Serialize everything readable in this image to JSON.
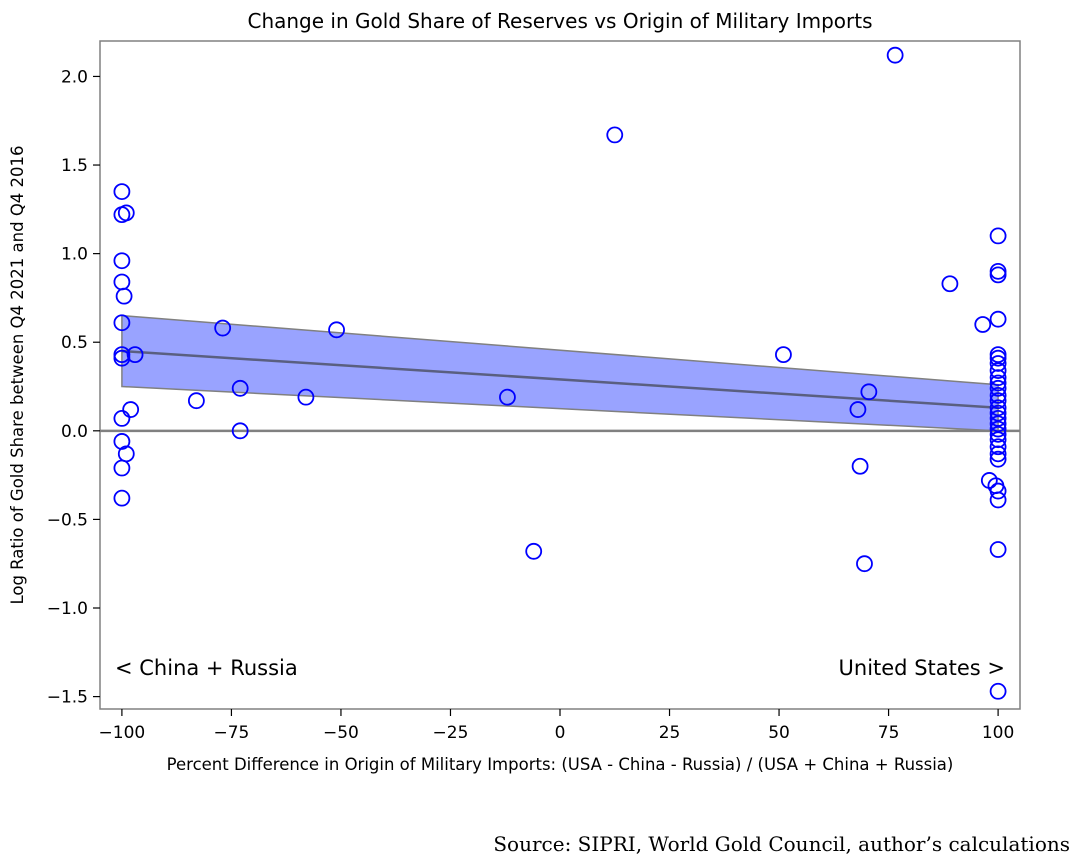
{
  "chart_data": {
    "type": "scatter",
    "title": "Change in Gold Share of Reserves vs Origin of Military Imports",
    "xlabel": "Percent Difference in Origin of Military Imports: (USA - China - Russia) / (USA + China + Russia)",
    "ylabel": "Log Ratio of Gold Share between Q4 2021 and Q4 2016",
    "xlim": [
      -105,
      105
    ],
    "ylim": [
      -1.57,
      2.2
    ],
    "x_ticks": [
      -100,
      -75,
      -50,
      -25,
      0,
      25,
      50,
      75,
      100
    ],
    "x_tick_labels": [
      "−100",
      "−75",
      "−50",
      "−25",
      "0",
      "25",
      "50",
      "75",
      "100"
    ],
    "y_ticks": [
      -1.5,
      -1.0,
      -0.5,
      0.0,
      0.5,
      1.0,
      1.5,
      2.0
    ],
    "y_tick_labels": [
      "−1.5",
      "−1.0",
      "−0.5",
      "0.0",
      "0.5",
      "1.0",
      "1.5",
      "2.0"
    ],
    "grid": false,
    "reference_line_y": 0,
    "annotations": [
      "< China + Russia",
      "United States >"
    ],
    "source": "Source: SIPRI, World Gold Council, author’s calculations",
    "colors": {
      "marker": "#0000ff",
      "band_fill": "#99a3ff",
      "band_edge": "#808080",
      "fit_line": "#5a5f80",
      "zero_line": "#808080",
      "axes": "#808080"
    },
    "regression": {
      "x": [
        -100,
        100
      ],
      "y": [
        0.45,
        0.13
      ],
      "ci_lower": [
        0.25,
        0.0
      ],
      "ci_upper": [
        0.65,
        0.26
      ]
    },
    "points": [
      {
        "x": -100,
        "y": 1.35
      },
      {
        "x": -100,
        "y": 1.22
      },
      {
        "x": -99,
        "y": 1.23
      },
      {
        "x": -100,
        "y": 0.96
      },
      {
        "x": -100,
        "y": 0.84
      },
      {
        "x": -99.5,
        "y": 0.76
      },
      {
        "x": -100,
        "y": 0.61
      },
      {
        "x": -100,
        "y": 0.43
      },
      {
        "x": -100,
        "y": 0.41
      },
      {
        "x": -97,
        "y": 0.43
      },
      {
        "x": -98,
        "y": 0.12
      },
      {
        "x": -100,
        "y": 0.07
      },
      {
        "x": -100,
        "y": -0.06
      },
      {
        "x": -99,
        "y": -0.13
      },
      {
        "x": -100,
        "y": -0.21
      },
      {
        "x": -100,
        "y": -0.38
      },
      {
        "x": -77,
        "y": 0.58
      },
      {
        "x": -83,
        "y": 0.17
      },
      {
        "x": -73,
        "y": 0.24
      },
      {
        "x": -73,
        "y": 0.0
      },
      {
        "x": -58,
        "y": 0.19
      },
      {
        "x": -51,
        "y": 0.57
      },
      {
        "x": -12,
        "y": 0.19
      },
      {
        "x": -6,
        "y": -0.68
      },
      {
        "x": 12.5,
        "y": 1.67
      },
      {
        "x": 51,
        "y": 0.43
      },
      {
        "x": 76.5,
        "y": 2.12
      },
      {
        "x": 68,
        "y": 0.12
      },
      {
        "x": 70.5,
        "y": 0.22
      },
      {
        "x": 68.5,
        "y": -0.2
      },
      {
        "x": 69.5,
        "y": -0.75
      },
      {
        "x": 89,
        "y": 0.83
      },
      {
        "x": 96.5,
        "y": 0.6
      },
      {
        "x": 100,
        "y": 1.1
      },
      {
        "x": 100,
        "y": 0.9
      },
      {
        "x": 100,
        "y": 0.88
      },
      {
        "x": 100,
        "y": 0.63
      },
      {
        "x": 100,
        "y": 0.43
      },
      {
        "x": 100,
        "y": 0.41
      },
      {
        "x": 100,
        "y": 0.38
      },
      {
        "x": 100,
        "y": 0.34
      },
      {
        "x": 100,
        "y": 0.3
      },
      {
        "x": 100,
        "y": 0.27
      },
      {
        "x": 100,
        "y": 0.24
      },
      {
        "x": 100,
        "y": 0.2
      },
      {
        "x": 100,
        "y": 0.17
      },
      {
        "x": 100,
        "y": 0.13
      },
      {
        "x": 100,
        "y": 0.1
      },
      {
        "x": 100,
        "y": 0.07
      },
      {
        "x": 100,
        "y": 0.04
      },
      {
        "x": 100,
        "y": 0.01
      },
      {
        "x": 100,
        "y": -0.02
      },
      {
        "x": 100,
        "y": -0.05
      },
      {
        "x": 100,
        "y": -0.09
      },
      {
        "x": 100,
        "y": -0.13
      },
      {
        "x": 100,
        "y": -0.16
      },
      {
        "x": 98,
        "y": -0.28
      },
      {
        "x": 99.5,
        "y": -0.31
      },
      {
        "x": 100,
        "y": -0.34
      },
      {
        "x": 100,
        "y": -0.39
      },
      {
        "x": 100,
        "y": -0.67
      },
      {
        "x": 100,
        "y": -1.47
      }
    ]
  }
}
